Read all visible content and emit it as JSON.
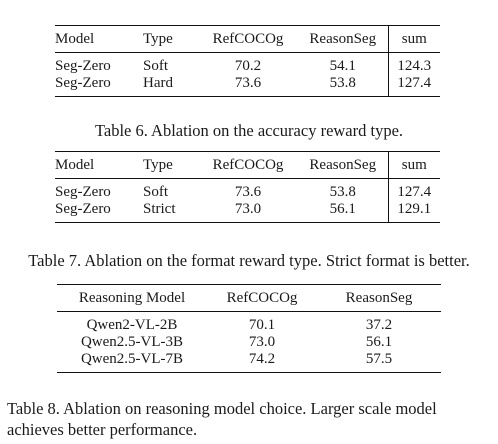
{
  "table6": {
    "headers": [
      "Model",
      "Type",
      "RefCOCOg",
      "ReasonSeg",
      "sum"
    ],
    "rows": [
      [
        "Seg-Zero",
        "Soft",
        "70.2",
        "54.1",
        "124.3"
      ],
      [
        "Seg-Zero",
        "Hard",
        "73.6",
        "53.8",
        "127.4"
      ]
    ],
    "caption": "Table 6. Ablation on the accuracy reward type."
  },
  "table7": {
    "headers": [
      "Model",
      "Type",
      "RefCOCOg",
      "ReasonSeg",
      "sum"
    ],
    "rows": [
      [
        "Seg-Zero",
        "Soft",
        "73.6",
        "53.8",
        "127.4"
      ],
      [
        "Seg-Zero",
        "Strict",
        "73.0",
        "56.1",
        "129.1"
      ]
    ],
    "caption": "Table 7. Ablation on the format reward type. Strict format is better."
  },
  "table8": {
    "headers": [
      "Reasoning Model",
      "RefCOCOg",
      "ReasonSeg"
    ],
    "rows": [
      [
        "Qwen2-VL-2B",
        "70.1",
        "37.2"
      ],
      [
        "Qwen2.5-VL-3B",
        "73.0",
        "56.1"
      ],
      [
        "Qwen2.5-VL-7B",
        "74.2",
        "57.5"
      ]
    ],
    "caption_line1": "Table 8. Ablation on reasoning model choice. Larger scale model",
    "caption_line2": "achieves better performance."
  }
}
